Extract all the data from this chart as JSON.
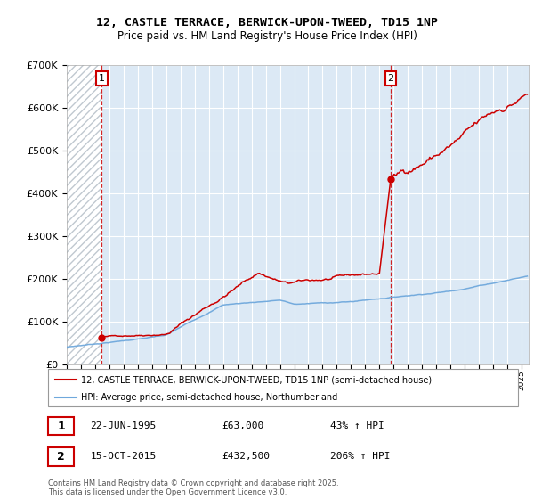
{
  "title_line1": "12, CASTLE TERRACE, BERWICK-UPON-TWEED, TD15 1NP",
  "title_line2": "Price paid vs. HM Land Registry's House Price Index (HPI)",
  "sale1": {
    "date": 1995.47,
    "price": 63000,
    "label": "1",
    "date_str": "22-JUN-1995",
    "price_str": "£63,000",
    "pct_str": "43% ↑ HPI"
  },
  "sale2": {
    "date": 2015.79,
    "price": 432500,
    "label": "2",
    "date_str": "15-OCT-2015",
    "price_str": "£432,500",
    "pct_str": "206% ↑ HPI"
  },
  "ylim": [
    0,
    700000
  ],
  "xlim_start": 1993.0,
  "xlim_end": 2025.5,
  "legend_line1": "12, CASTLE TERRACE, BERWICK-UPON-TWEED, TD15 1NP (semi-detached house)",
  "legend_line2": "HPI: Average price, semi-detached house, Northumberland",
  "footer": "Contains HM Land Registry data © Crown copyright and database right 2025.\nThis data is licensed under the Open Government Licence v3.0.",
  "red_color": "#cc0000",
  "blue_color": "#6fa8dc",
  "plot_bg": "#dce9f5",
  "hatch_color": "#c0c8d0"
}
